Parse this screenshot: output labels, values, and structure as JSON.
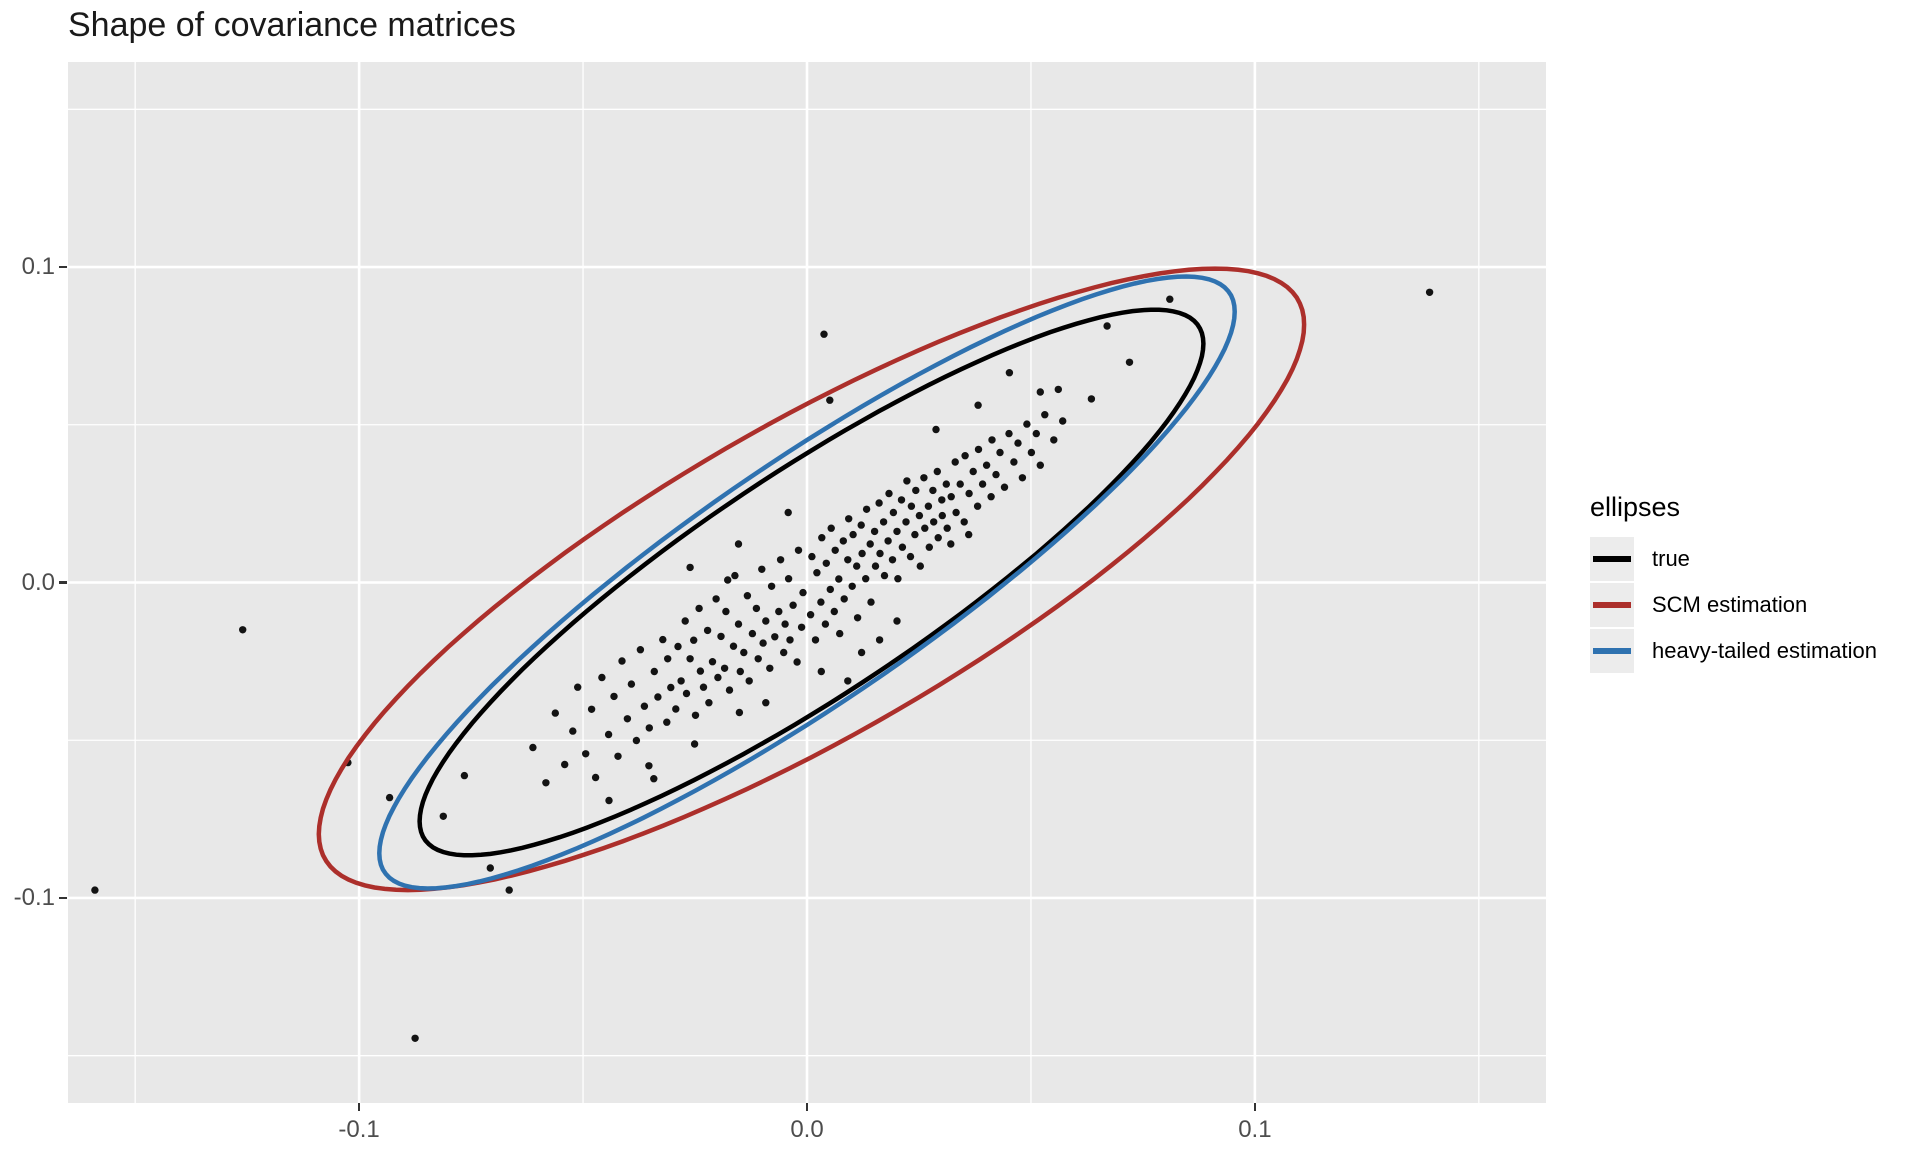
{
  "title": "Shape of covariance matrices",
  "legend": {
    "title": "ellipses",
    "items": [
      {
        "label": "true",
        "color": "#000000"
      },
      {
        "label": "SCM estimation",
        "color": "#AC2F2B"
      },
      {
        "label": "heavy-tailed estimation",
        "color": "#2F72B0"
      }
    ]
  },
  "chart_data": {
    "type": "scatter",
    "title": "Shape of covariance matrices",
    "xlabel": "",
    "ylabel": "",
    "xlim": [
      -0.165,
      0.165
    ],
    "ylim": [
      -0.165,
      0.165
    ],
    "grid": true,
    "legend_position": "right",
    "panel_background": "#e8e8e8",
    "gridline_color": "#ffffff",
    "point_color": "#131313",
    "axis_text_color": "#4d4d4d",
    "x_ticks": {
      "values": [
        -0.1,
        0.0,
        0.1
      ],
      "labels": [
        "-0.1",
        "0.0",
        "0.1"
      ]
    },
    "y_ticks": {
      "values": [
        0.1,
        0.0,
        -0.1
      ],
      "labels": [
        "0.1",
        "0.0",
        "-0.1"
      ]
    },
    "x_minor": [
      -0.15,
      -0.05,
      0.05,
      0.15
    ],
    "y_minor": [
      0.15,
      0.05,
      -0.05,
      -0.15
    ],
    "ellipses": [
      {
        "name": "true",
        "color": "#000000",
        "cx": 0.001,
        "cy": 0.0,
        "sx": 0.0875,
        "sy": 0.0865,
        "rho": 0.875
      },
      {
        "name": "SCM estimation",
        "color": "#AC2F2B",
        "cx": 0.001,
        "cy": 0.001,
        "sx": 0.11,
        "sy": 0.0985,
        "rho": 0.82
      },
      {
        "name": "heavy-tailed estimation",
        "color": "#2F72B0",
        "cx": 0.0,
        "cy": 0.0,
        "sx": 0.0955,
        "sy": 0.097,
        "rho": 0.885
      }
    ],
    "points": [
      [
        0.139,
        0.092
      ],
      [
        -0.159,
        -0.0975
      ],
      [
        -0.126,
        -0.015
      ],
      [
        -0.0665,
        -0.0975
      ],
      [
        -0.0707,
        -0.0905
      ],
      [
        -0.1025,
        -0.0571
      ],
      [
        0.0038,
        0.0787
      ],
      [
        0.081,
        0.0898
      ],
      [
        0.067,
        0.0813
      ],
      [
        0.072,
        0.0698
      ],
      [
        0.0051,
        0.0578
      ],
      [
        -0.0875,
        -0.1445
      ],
      [
        0.0452,
        0.0665
      ],
      [
        0.0561,
        0.0612
      ],
      [
        0.0635,
        0.0582
      ],
      [
        0.0382,
        0.0562
      ],
      [
        0.0521,
        0.0604
      ],
      [
        -0.0932,
        -0.0682
      ],
      [
        -0.0812,
        -0.0741
      ],
      [
        0.0288,
        0.0485
      ],
      [
        -0.0765,
        -0.0612
      ],
      [
        -0.0612,
        -0.0523
      ],
      [
        -0.0583,
        -0.0635
      ],
      [
        -0.0562,
        -0.0414
      ],
      [
        -0.0541,
        -0.0577
      ],
      [
        -0.0523,
        -0.0471
      ],
      [
        -0.0512,
        -0.0332
      ],
      [
        -0.0494,
        -0.0543
      ],
      [
        -0.0481,
        -0.0402
      ],
      [
        -0.0472,
        -0.0618
      ],
      [
        -0.0458,
        -0.0301
      ],
      [
        -0.0443,
        -0.0482
      ],
      [
        -0.0431,
        -0.0361
      ],
      [
        -0.0422,
        -0.0551
      ],
      [
        -0.0413,
        -0.0249
      ],
      [
        -0.0401,
        -0.0432
      ],
      [
        -0.0392,
        -0.0322
      ],
      [
        -0.0381,
        -0.0501
      ],
      [
        -0.0372,
        -0.0213
      ],
      [
        -0.0363,
        -0.0392
      ],
      [
        -0.0352,
        -0.0461
      ],
      [
        -0.0341,
        -0.0282
      ],
      [
        -0.0333,
        -0.0363
      ],
      [
        -0.0322,
        -0.0181
      ],
      [
        -0.0313,
        -0.0443
      ],
      [
        -0.0304,
        -0.0333
      ],
      [
        -0.0353,
        -0.0581
      ],
      [
        -0.0442,
        -0.0691
      ],
      [
        -0.0311,
        -0.0242
      ],
      [
        -0.0293,
        -0.0401
      ],
      [
        -0.0288,
        -0.0203
      ],
      [
        -0.0281,
        -0.0312
      ],
      [
        -0.0272,
        -0.0122
      ],
      [
        -0.0269,
        -0.0352
      ],
      [
        -0.0261,
        -0.0242
      ],
      [
        -0.0253,
        -0.0183
      ],
      [
        -0.0249,
        -0.0421
      ],
      [
        -0.0241,
        -0.0082
      ],
      [
        -0.0238,
        -0.0281
      ],
      [
        -0.0231,
        -0.0332
      ],
      [
        -0.0222,
        -0.0152
      ],
      [
        -0.0219,
        -0.0381
      ],
      [
        -0.0211,
        -0.0251
      ],
      [
        -0.0203,
        -0.0052
      ],
      [
        -0.0199,
        -0.0301
      ],
      [
        -0.0192,
        -0.0171
      ],
      [
        -0.0184,
        -0.0272
      ],
      [
        -0.0181,
        -0.0092
      ],
      [
        -0.0173,
        -0.0341
      ],
      [
        -0.0164,
        -0.0202
      ],
      [
        -0.0161,
        0.0022
      ],
      [
        -0.0153,
        -0.0132
      ],
      [
        -0.0149,
        -0.0282
      ],
      [
        -0.0141,
        -0.0222
      ],
      [
        -0.0133,
        -0.0042
      ],
      [
        -0.0129,
        -0.0312
      ],
      [
        -0.0122,
        -0.0162
      ],
      [
        -0.0113,
        -0.0082
      ],
      [
        -0.0109,
        -0.0242
      ],
      [
        -0.0101,
        0.0042
      ],
      [
        -0.0098,
        -0.0192
      ],
      [
        -0.0092,
        -0.0122
      ],
      [
        -0.0083,
        -0.0272
      ],
      [
        -0.0079,
        -0.0012
      ],
      [
        -0.0072,
        -0.0172
      ],
      [
        -0.0063,
        -0.0092
      ],
      [
        -0.0059,
        0.0072
      ],
      [
        -0.0052,
        -0.0222
      ],
      [
        -0.0049,
        -0.0132
      ],
      [
        -0.0041,
        0.0012
      ],
      [
        -0.0038,
        -0.0182
      ],
      [
        -0.0031,
        -0.0072
      ],
      [
        -0.0022,
        -0.0252
      ],
      [
        -0.0019,
        0.0102
      ],
      [
        -0.0012,
        -0.0142
      ],
      [
        -0.0009,
        -0.0032
      ],
      [
        -0.0092,
        -0.0381
      ],
      [
        -0.0177,
        0.0008
      ],
      [
        -0.0261,
        0.0048
      ],
      [
        -0.0153,
        0.0122
      ],
      [
        -0.0042,
        0.0222
      ],
      [
        0.0008,
        -0.0102
      ],
      [
        0.0011,
        0.0082
      ],
      [
        0.0019,
        -0.0182
      ],
      [
        0.0022,
        0.0031
      ],
      [
        0.0031,
        -0.0062
      ],
      [
        0.0033,
        0.0142
      ],
      [
        0.0041,
        -0.0132
      ],
      [
        0.0043,
        0.0061
      ],
      [
        0.0052,
        -0.0022
      ],
      [
        0.0054,
        0.0172
      ],
      [
        0.0061,
        -0.0092
      ],
      [
        0.0063,
        0.0102
      ],
      [
        0.0071,
        0.0011
      ],
      [
        0.0073,
        -0.0162
      ],
      [
        0.0081,
        0.0132
      ],
      [
        0.0083,
        -0.0052
      ],
      [
        0.0091,
        0.0072
      ],
      [
        0.0093,
        0.0202
      ],
      [
        0.0101,
        -0.0012
      ],
      [
        0.0103,
        0.0152
      ],
      [
        0.0111,
        0.0052
      ],
      [
        0.0113,
        -0.0112
      ],
      [
        0.0121,
        0.0182
      ],
      [
        0.0123,
        0.0092
      ],
      [
        0.0131,
        0.0012
      ],
      [
        0.0133,
        0.0232
      ],
      [
        0.0141,
        0.0122
      ],
      [
        0.0143,
        -0.0062
      ],
      [
        0.0151,
        0.0162
      ],
      [
        0.0153,
        0.0052
      ],
      [
        0.0161,
        0.0252
      ],
      [
        0.0163,
        0.0092
      ],
      [
        0.0171,
        0.0192
      ],
      [
        0.0173,
        0.0022
      ],
      [
        0.0181,
        0.0132
      ],
      [
        0.0183,
        0.0282
      ],
      [
        0.0191,
        0.0072
      ],
      [
        0.0193,
        0.0222
      ],
      [
        0.0201,
        0.0162
      ],
      [
        0.0203,
        0.0012
      ],
      [
        0.0211,
        0.0262
      ],
      [
        0.0213,
        0.0112
      ],
      [
        0.0221,
        0.0192
      ],
      [
        0.0223,
        0.0322
      ],
      [
        0.0231,
        0.0082
      ],
      [
        0.0233,
        0.0242
      ],
      [
        0.0241,
        0.0152
      ],
      [
        0.0243,
        0.0292
      ],
      [
        0.0251,
        0.0212
      ],
      [
        0.0253,
        0.0052
      ],
      [
        0.0261,
        0.0332
      ],
      [
        0.0263,
        0.0172
      ],
      [
        0.0271,
        0.0242
      ],
      [
        0.0273,
        0.0112
      ],
      [
        0.0281,
        0.0292
      ],
      [
        0.0283,
        0.0192
      ],
      [
        0.0291,
        0.0352
      ],
      [
        0.0293,
        0.0142
      ],
      [
        0.0301,
        0.0262
      ],
      [
        0.0302,
        0.0212
      ],
      [
        0.0311,
        0.0312
      ],
      [
        0.0313,
        0.0172
      ],
      [
        0.0322,
        0.0272
      ],
      [
        0.0331,
        0.0382
      ],
      [
        0.0333,
        0.0222
      ],
      [
        0.0342,
        0.0312
      ],
      [
        0.0351,
        0.0192
      ],
      [
        0.0353,
        0.0402
      ],
      [
        0.0362,
        0.0282
      ],
      [
        0.0371,
        0.0352
      ],
      [
        0.0381,
        0.0242
      ],
      [
        0.0383,
        0.0422
      ],
      [
        0.0392,
        0.0312
      ],
      [
        0.0401,
        0.0372
      ],
      [
        0.0411,
        0.0272
      ],
      [
        0.0413,
        0.0452
      ],
      [
        0.0422,
        0.0342
      ],
      [
        0.0431,
        0.0412
      ],
      [
        0.0441,
        0.0302
      ],
      [
        0.0451,
        0.0472
      ],
      [
        0.0462,
        0.0382
      ],
      [
        0.0471,
        0.0442
      ],
      [
        0.0481,
        0.0332
      ],
      [
        0.0491,
        0.0502
      ],
      [
        0.0501,
        0.0412
      ],
      [
        0.0512,
        0.0472
      ],
      [
        0.0521,
        0.0372
      ],
      [
        0.0531,
        0.0532
      ],
      [
        0.0551,
        0.0452
      ],
      [
        0.0571,
        0.0512
      ],
      [
        0.0321,
        0.0122
      ],
      [
        0.0361,
        0.0152
      ],
      [
        0.0122,
        -0.0222
      ],
      [
        0.0201,
        -0.0122
      ],
      [
        0.0032,
        -0.0282
      ],
      [
        -0.0151,
        -0.0412
      ],
      [
        0.0162,
        -0.0182
      ],
      [
        -0.0251,
        -0.0512
      ],
      [
        -0.0342,
        -0.0622
      ],
      [
        0.0091,
        -0.0312
      ]
    ]
  }
}
